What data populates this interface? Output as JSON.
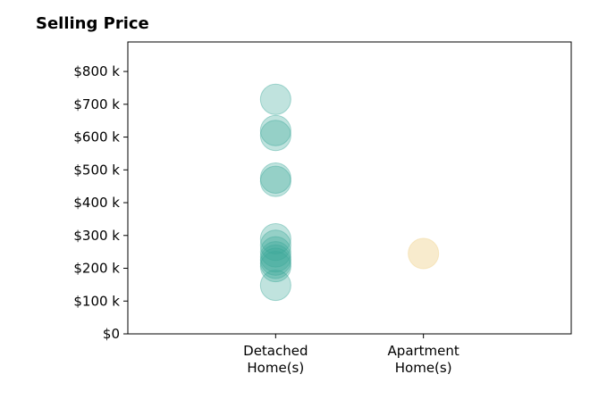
{
  "chart_data": {
    "type": "scatter",
    "title": "Selling Price",
    "xlabel": "",
    "ylabel": "",
    "categories": [
      "Detached\nHome(s)",
      "Apartment\nHome(s)"
    ],
    "category_range": [
      0,
      3
    ],
    "ylim": [
      0,
      890000
    ],
    "y_ticks": [
      {
        "value": 0,
        "label": "$0"
      },
      {
        "value": 100000,
        "label": "$100 k"
      },
      {
        "value": 200000,
        "label": "$200 k"
      },
      {
        "value": 300000,
        "label": "$300 k"
      },
      {
        "value": 400000,
        "label": "$400 k"
      },
      {
        "value": 500000,
        "label": "$500 k"
      },
      {
        "value": 600000,
        "label": "$600 k"
      },
      {
        "value": 700000,
        "label": "$700 k"
      },
      {
        "value": 800000,
        "label": "$800 k"
      }
    ],
    "grid": false,
    "legend": "none",
    "series": [
      {
        "category": "Detached\nHome(s)",
        "color": "#3aa898",
        "opacity": 0.32,
        "values": [
          715000,
          620000,
          605000,
          475000,
          465000,
          290000,
          270000,
          250000,
          235000,
          225000,
          215000,
          205000,
          148000
        ]
      },
      {
        "category": "Apartment\nHome(s)",
        "color": "#f3deab",
        "opacity": 0.6,
        "values": [
          245000
        ]
      }
    ]
  }
}
